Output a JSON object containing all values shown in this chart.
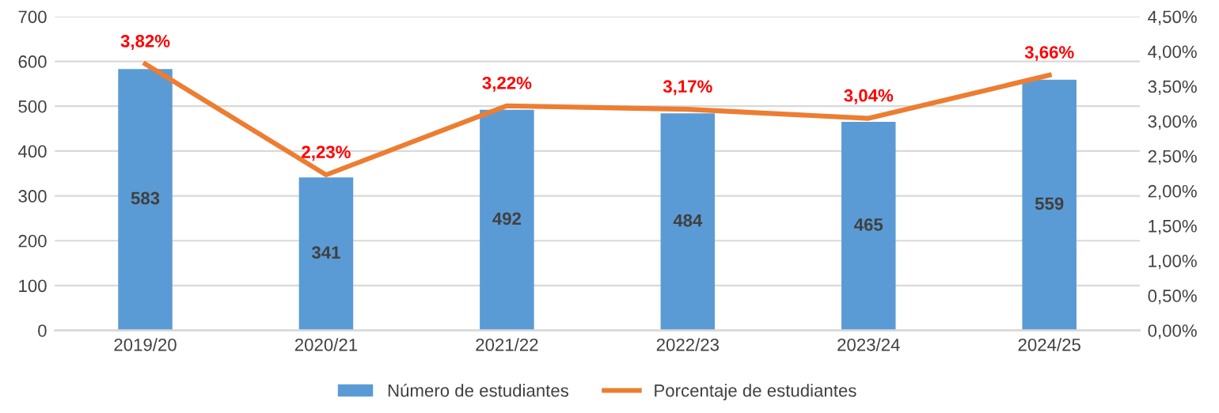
{
  "chart_data": {
    "type": "bar",
    "categories": [
      "2019/20",
      "2020/21",
      "2021/22",
      "2022/23",
      "2023/24",
      "2024/25"
    ],
    "series": [
      {
        "name": "Número de estudiantes",
        "color": "#5b9bd5",
        "values": [
          583,
          341,
          492,
          484,
          465,
          559
        ],
        "data_labels": true
      },
      {
        "name": "Porcentaje de estudiantes",
        "type": "line",
        "axis": "y2",
        "color": "#ed7d31",
        "values": [
          3.82,
          2.23,
          3.22,
          3.17,
          3.04,
          3.66
        ],
        "value_labels": [
          "3,82%",
          "2,23%",
          "3,22%",
          "3,17%",
          "3,04%",
          "3,66%"
        ]
      }
    ],
    "ylim": [
      0,
      700
    ],
    "yticks": [
      0,
      100,
      200,
      300,
      400,
      500,
      600,
      700
    ],
    "y2lim": [
      0,
      4.5
    ],
    "y2ticks": [
      {
        "value": 0,
        "label": "0,00%"
      },
      {
        "value": 0.5,
        "label": "0,50%"
      },
      {
        "value": 1,
        "label": "1,00%"
      },
      {
        "value": 1.5,
        "label": "1,50%"
      },
      {
        "value": 2,
        "label": "2,00%"
      },
      {
        "value": 2.5,
        "label": "2,50%"
      },
      {
        "value": 3,
        "label": "3,00%"
      },
      {
        "value": 3.5,
        "label": "3,50%"
      },
      {
        "value": 4,
        "label": "4,00%"
      },
      {
        "value": 4.5,
        "label": "4,50%"
      }
    ],
    "grid": "y",
    "legend": "bottom",
    "marker": "none",
    "line_style": "solid"
  }
}
